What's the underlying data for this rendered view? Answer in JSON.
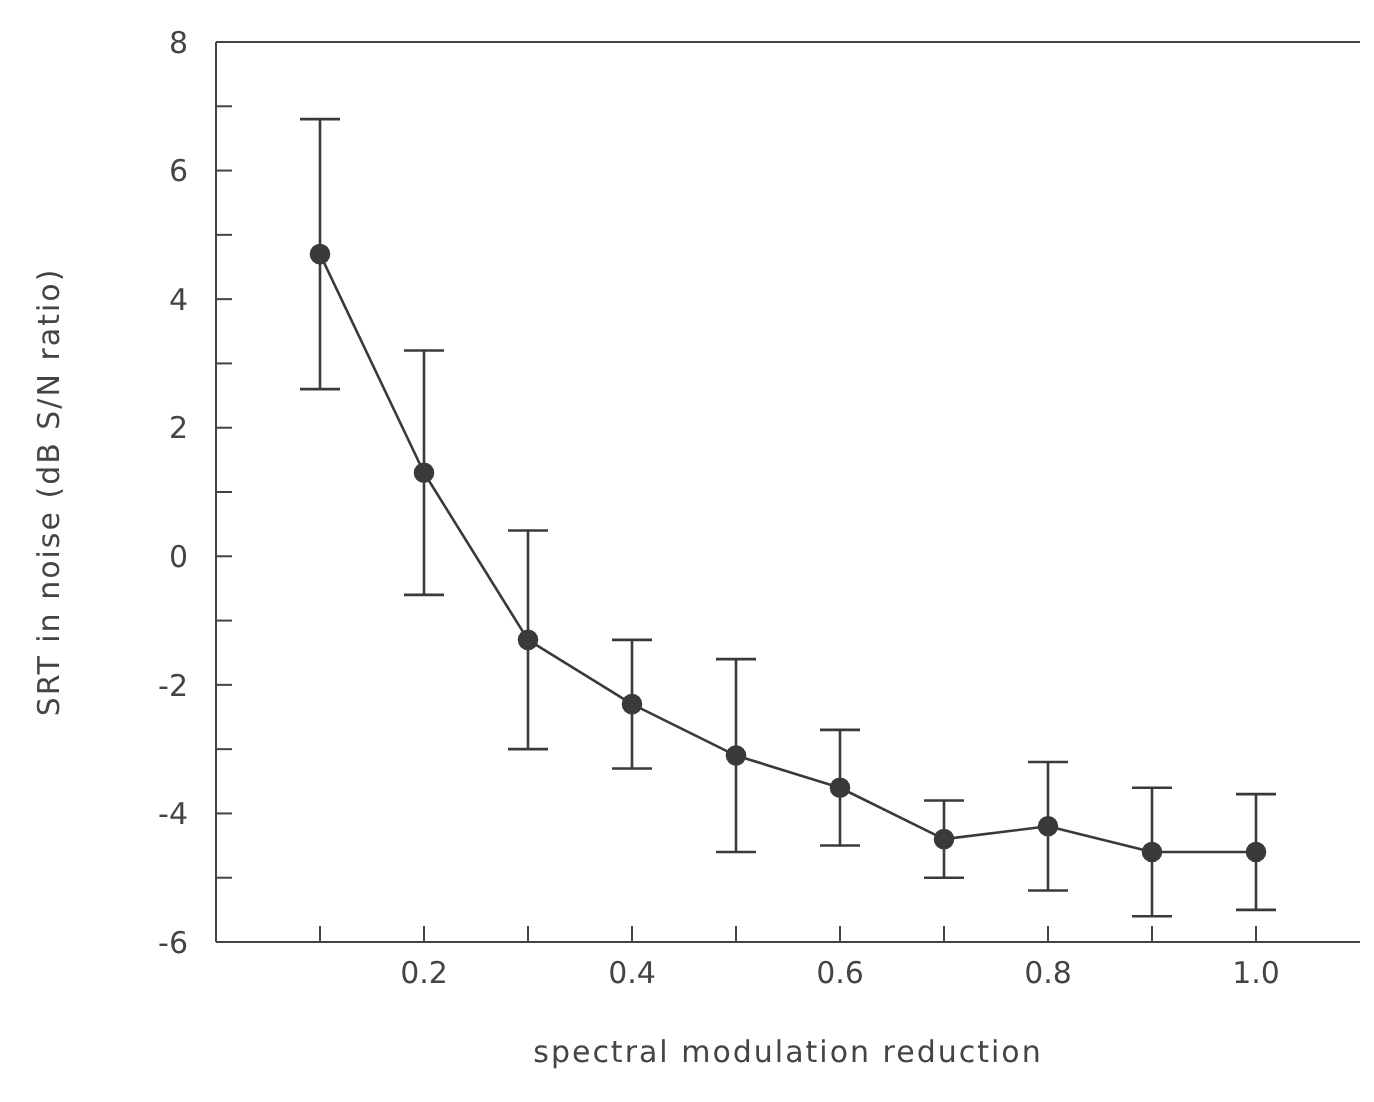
{
  "chart_data": {
    "type": "line",
    "xlabel": "spectral modulation reduction",
    "ylabel": "SRT in noise (dB S/N ratio)",
    "x": [
      0.1,
      0.2,
      0.3,
      0.4,
      0.5,
      0.6,
      0.7,
      0.8,
      0.9,
      1.0
    ],
    "series": [
      {
        "color": "#3a3a3a",
        "values": [
          4.7,
          1.3,
          -1.3,
          -2.3,
          -3.1,
          -3.6,
          -4.4,
          -4.2,
          -4.6,
          -4.6
        ],
        "errors": [
          2.1,
          1.9,
          1.7,
          1.0,
          1.5,
          0.9,
          0.6,
          1.0,
          1.0,
          0.9
        ]
      }
    ],
    "xlim": [
      0,
      1.1
    ],
    "xticks": [
      {
        "value": 0.1,
        "label": null
      },
      {
        "value": 0.2,
        "label": "0.2"
      },
      {
        "value": 0.3,
        "label": null
      },
      {
        "value": 0.4,
        "label": "0.4"
      },
      {
        "value": 0.5,
        "label": null
      },
      {
        "value": 0.6,
        "label": "0.6"
      },
      {
        "value": 0.7,
        "label": null
      },
      {
        "value": 0.8,
        "label": "0.8"
      },
      {
        "value": 0.9,
        "label": null
      },
      {
        "value": 1.0,
        "label": "1.0"
      }
    ],
    "ylim": [
      -6,
      8
    ],
    "yticks": [
      -6,
      {
        "value": -5,
        "label": null
      },
      -4,
      {
        "value": -3,
        "label": null
      },
      -2,
      {
        "value": -1,
        "label": null
      },
      0,
      {
        "value": 1,
        "label": null
      },
      2,
      {
        "value": 3,
        "label": null
      },
      4,
      {
        "value": 5,
        "label": null
      },
      6,
      {
        "value": 7,
        "label": null
      },
      8
    ],
    "grid": false,
    "legend": false,
    "marker": "circle",
    "line_style": "solid"
  }
}
